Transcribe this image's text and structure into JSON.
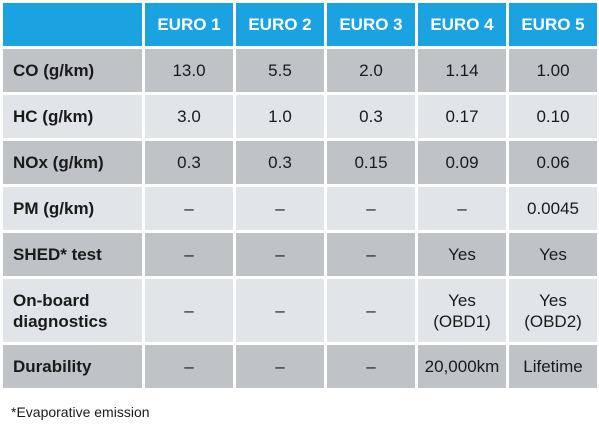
{
  "table": {
    "columns": [
      "EURO 1",
      "EURO 2",
      "EURO 3",
      "EURO 4",
      "EURO 5"
    ],
    "rows": [
      {
        "label": "CO (g/km)",
        "cells": [
          "13.0",
          "5.5",
          "2.0",
          "1.14",
          "1.00"
        ]
      },
      {
        "label": "HC (g/km)",
        "cells": [
          "3.0",
          "1.0",
          "0.3",
          "0.17",
          "0.10"
        ]
      },
      {
        "label": "NOx (g/km)",
        "cells": [
          "0.3",
          "0.3",
          "0.15",
          "0.09",
          "0.06"
        ]
      },
      {
        "label": "PM (g/km)",
        "cells": [
          "–",
          "–",
          "–",
          "–",
          "0.0045"
        ]
      },
      {
        "label": "SHED* test",
        "cells": [
          "–",
          "–",
          "–",
          "Yes",
          "Yes"
        ]
      },
      {
        "label": "On-board diagnostics",
        "cells": [
          "–",
          "–",
          "–",
          "Yes (OBD1)",
          "Yes (OBD2)"
        ]
      },
      {
        "label": "Durability",
        "cells": [
          "–",
          "–",
          "–",
          "20,000km",
          "Lifetime"
        ]
      }
    ]
  },
  "footnote": "*Evaporative emission",
  "colors": {
    "header": "#1aa3e0",
    "row_dark": "#bfc3c8",
    "row_light": "#e1e4e8"
  }
}
